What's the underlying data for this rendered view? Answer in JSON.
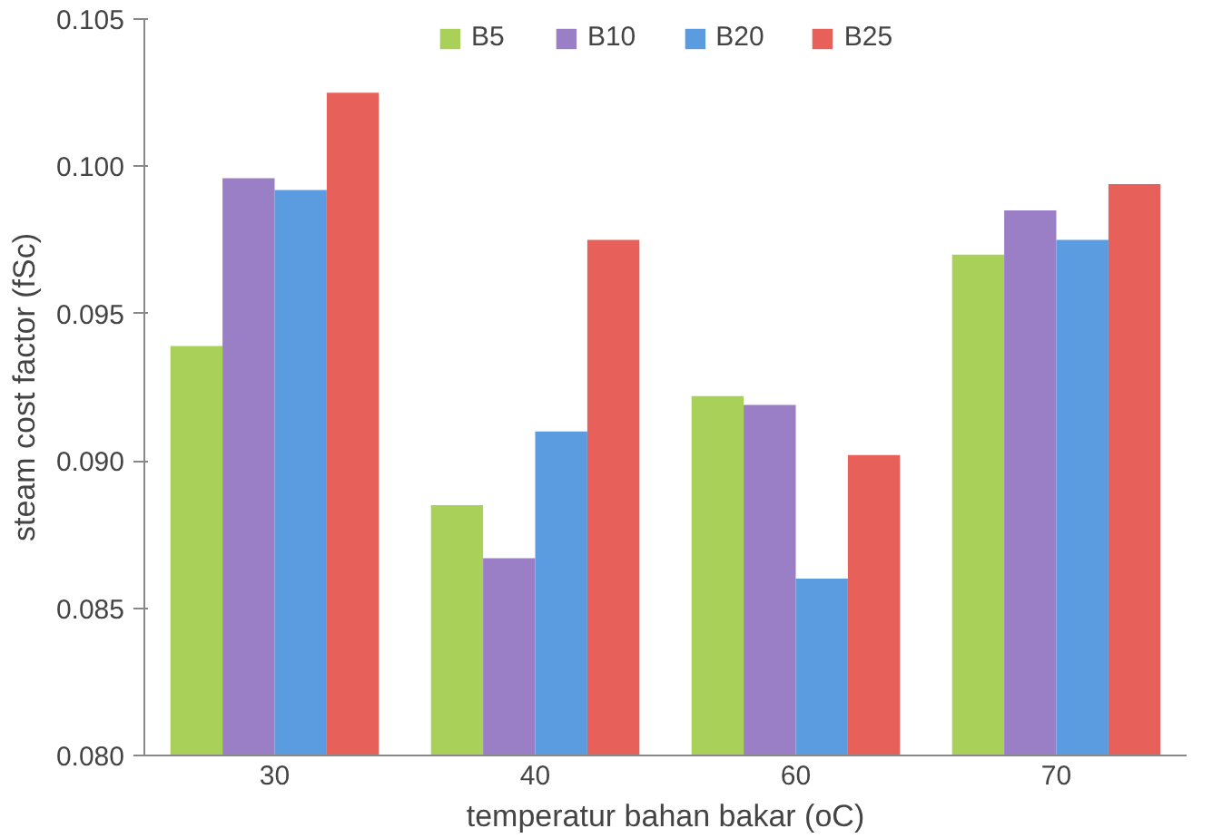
{
  "chart_data": {
    "type": "bar",
    "xlabel": "temperatur bahan bakar (oC)",
    "ylabel": "steam cost factor (fSc)",
    "categories": [
      "30",
      "40",
      "60",
      "70"
    ],
    "series": [
      {
        "name": "B5",
        "color": "#a9d15a",
        "values": [
          0.0939,
          0.0885,
          0.0922,
          0.097
        ]
      },
      {
        "name": "B10",
        "color": "#9a7ec6",
        "values": [
          0.0996,
          0.0867,
          0.0919,
          0.0985
        ]
      },
      {
        "name": "B20",
        "color": "#5b9be0",
        "values": [
          0.0992,
          0.091,
          0.086,
          0.0975
        ]
      },
      {
        "name": "B25",
        "color": "#e8605a",
        "values": [
          0.1025,
          0.0975,
          0.0902,
          0.0994
        ]
      }
    ],
    "ylim": [
      0.08,
      0.105
    ],
    "yticks": [
      {
        "value": 0.08,
        "label": "0.080"
      },
      {
        "value": 0.085,
        "label": "0.085"
      },
      {
        "value": 0.09,
        "label": "0.090"
      },
      {
        "value": 0.095,
        "label": "0.095"
      },
      {
        "value": 0.1,
        "label": "0.100"
      },
      {
        "value": 0.105,
        "label": "0.105"
      }
    ],
    "grid": false,
    "legend": "top"
  }
}
